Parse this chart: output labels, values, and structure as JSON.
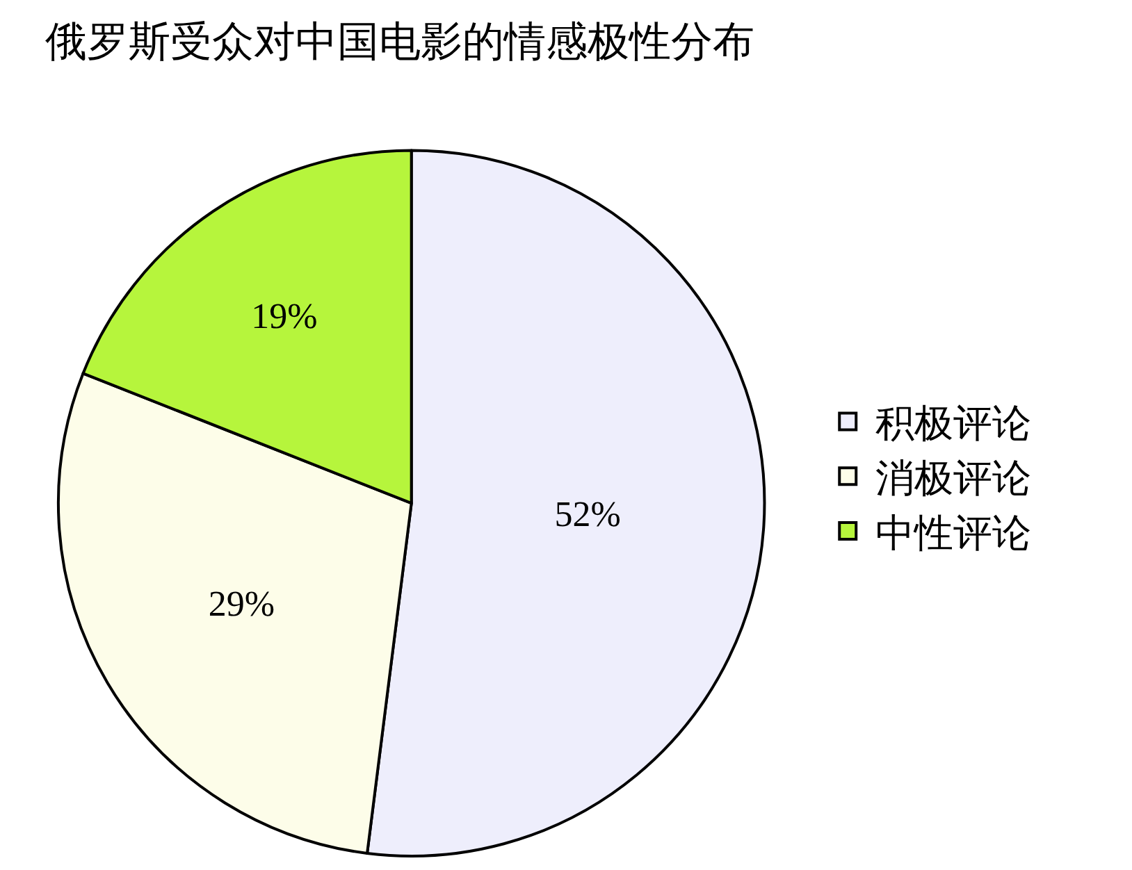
{
  "chart_data": {
    "type": "pie",
    "title": "俄罗斯受众对中国电影的情感极性分布",
    "categories": [
      "积极评论",
      "消极评论",
      "中性评论"
    ],
    "values": [
      52,
      29,
      19
    ],
    "value_labels": [
      "52%",
      "29%",
      "19%"
    ],
    "colors": [
      "#eeeefc",
      "#fdfde9",
      "#b6f53c"
    ],
    "legend": "right"
  }
}
